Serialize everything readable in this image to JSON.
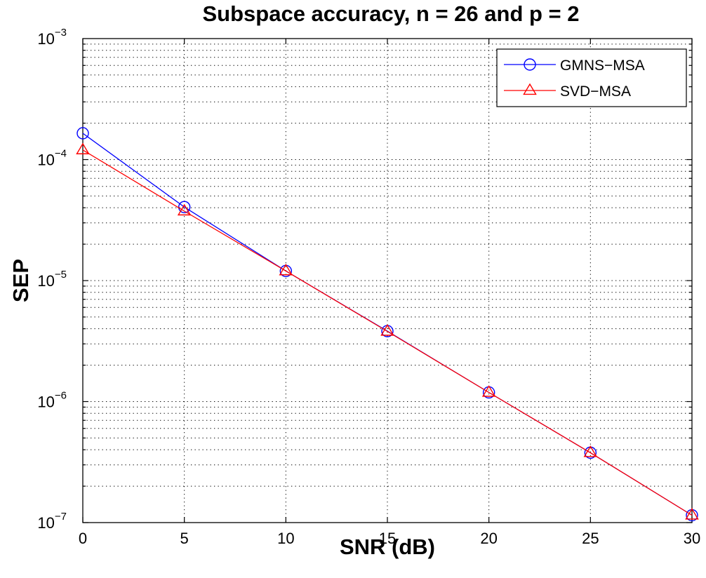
{
  "chart_data": {
    "type": "line",
    "title": "Subspace accuracy, n = 26 and p = 2",
    "xlabel": "SNR (dB)",
    "ylabel": "SEP",
    "yscale": "log",
    "xlim": [
      0,
      30
    ],
    "ylim": [
      1e-07,
      0.001
    ],
    "grid": true,
    "legend_position": "top-right",
    "xticks": [
      0,
      5,
      10,
      15,
      20,
      25,
      30
    ],
    "xtick_labels": [
      "0",
      "5",
      "10",
      "15",
      "20",
      "25",
      "30"
    ],
    "yticks": [
      {
        "value": 0.001,
        "base": "10",
        "exp": "−3"
      },
      {
        "value": 0.0001,
        "base": "10",
        "exp": "−4"
      },
      {
        "value": 1e-05,
        "base": "10",
        "exp": "−5"
      },
      {
        "value": 1e-06,
        "base": "10",
        "exp": "−6"
      },
      {
        "value": 1e-07,
        "base": "10",
        "exp": "−7"
      }
    ],
    "x": [
      0,
      5,
      10,
      15,
      20,
      25,
      30
    ],
    "series": [
      {
        "name": "GMNS−MSA",
        "color": "#0000ff",
        "marker": "circle",
        "values": [
          0.000165,
          4.05e-05,
          1.2e-05,
          3.82e-06,
          1.19e-06,
          3.78e-07,
          1.15e-07
        ]
      },
      {
        "name": "SVD−MSA",
        "color": "#ff0000",
        "marker": "triangle",
        "values": [
          0.00012,
          3.75e-05,
          1.2e-05,
          3.8e-06,
          1.19e-06,
          3.78e-07,
          1.15e-07
        ]
      }
    ]
  }
}
